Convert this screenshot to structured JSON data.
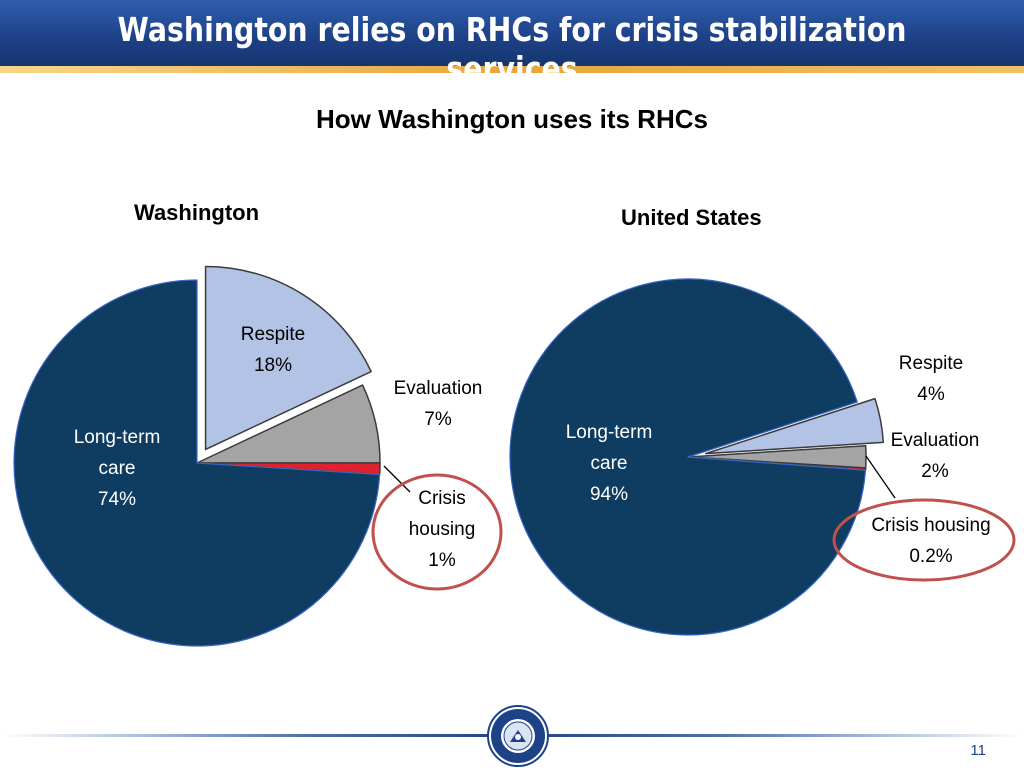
{
  "slide": {
    "title": "Washington relies on RHCs for crisis stabilization services",
    "subtitle": "How Washington uses its RHCs",
    "page_number": "11",
    "seal_text": "AUDITOR OF STATE · WASHINGTON"
  },
  "colors": {
    "long_term_care": "#0f3d62",
    "respite": "#b3c3e6",
    "evaluation": "#a4a4a4",
    "crisis_housing": "#e0222f",
    "highlight_circle": "#c0504d",
    "header": "#1e4288"
  },
  "chart_data": [
    {
      "type": "pie",
      "title": "Washington",
      "exploded": "Respite",
      "slices": [
        {
          "label": "Respite",
          "value": 18,
          "label_text": [
            "Respite",
            "18%"
          ]
        },
        {
          "label": "Evaluation",
          "value": 7,
          "label_text": [
            "Evaluation",
            "7%"
          ]
        },
        {
          "label": "Crisis housing",
          "value": 1,
          "label_text": [
            "Crisis",
            "housing",
            "1%"
          ],
          "highlighted": true
        },
        {
          "label": "Long-term care",
          "value": 74,
          "label_text": [
            "Long-term",
            "care",
            "74%"
          ]
        }
      ]
    },
    {
      "type": "pie",
      "title": "United States",
      "exploded": "Respite",
      "slices": [
        {
          "label": "Respite",
          "value": 4,
          "label_text": [
            "Respite",
            "4%"
          ]
        },
        {
          "label": "Evaluation",
          "value": 2,
          "label_text": [
            "Evaluation",
            "2%"
          ]
        },
        {
          "label": "Crisis housing",
          "value": 0.2,
          "label_text": [
            "Crisis housing",
            "0.2%"
          ],
          "highlighted": true
        },
        {
          "label": "Long-term care",
          "value": 94,
          "label_text": [
            "Long-term",
            "care",
            "94%"
          ]
        }
      ]
    }
  ]
}
